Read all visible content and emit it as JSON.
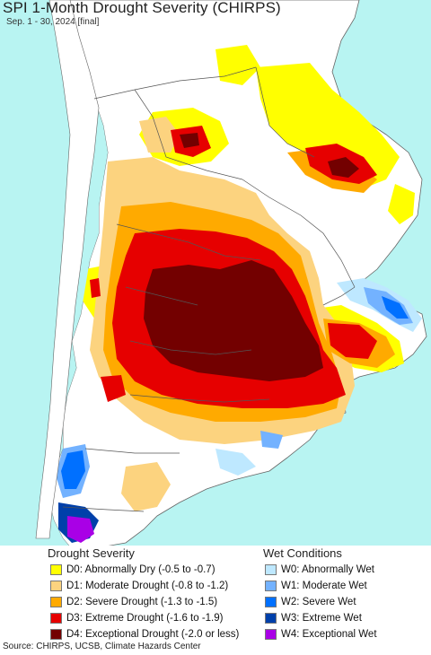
{
  "title": "SPI 1-Month Drought Severity (CHIRPS)",
  "subtitle": "Sep. 1 - 30, 2024 [final]",
  "legend": {
    "drought_heading": "Drought Severity",
    "wet_heading": "Wet Conditions",
    "drought": [
      {
        "label": "D0: Abnormally Dry (-0.5 to -0.7)",
        "color": "#ffff00"
      },
      {
        "label": "D1: Moderate Drought (-0.8 to -1.2)",
        "color": "#fcd37f"
      },
      {
        "label": "D2: Severe Drought (-1.3 to -1.5)",
        "color": "#ffaa00"
      },
      {
        "label": "D3: Extreme Drought (-1.6 to -1.9)",
        "color": "#e60000"
      },
      {
        "label": "D4: Exceptional Drought (-2.0 or less)",
        "color": "#730000"
      }
    ],
    "wet": [
      {
        "label": "W0: Abnormally Wet",
        "color": "#bee8ff"
      },
      {
        "label": "W1: Moderate Wet",
        "color": "#73b2ff"
      },
      {
        "label": "W2: Severe Wet",
        "color": "#0070ff"
      },
      {
        "label": "W3: Extreme Wet",
        "color": "#0040aa"
      },
      {
        "label": "W4: Exceptional Wet",
        "color": "#a900e6"
      }
    ]
  },
  "source": "Source: CHIRPS, UCSB, Climate Hazards Center",
  "colors": {
    "ocean": "#b8f4f2",
    "land_outside": "#ffffff",
    "border": "#555555"
  }
}
